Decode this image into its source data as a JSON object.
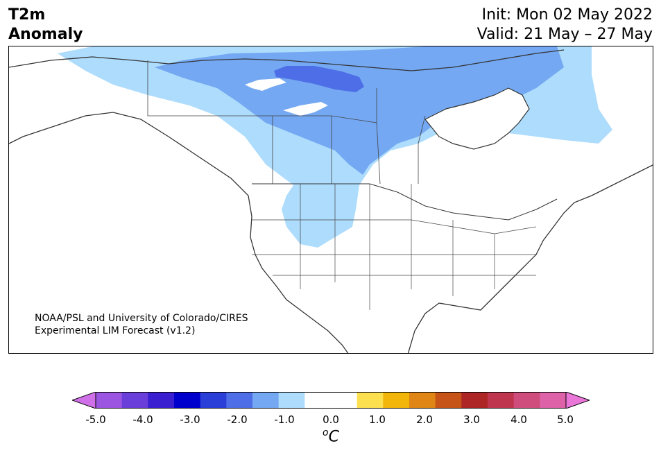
{
  "title": {
    "line1": "T2m",
    "line2": "Anomaly"
  },
  "dates": {
    "init": "Init: Mon 02 May 2022",
    "valid": "Valid: 21 May – 27 May"
  },
  "credit": {
    "line1": "NOAA/PSL and University of Colorado/CIRES",
    "line2": "Experimental LIM Forecast (v1.2)"
  },
  "colorbar": {
    "ticks": [
      "-5.0",
      "-4.0",
      "-3.0",
      "-2.0",
      "-1.0",
      "0.0",
      "1.0",
      "2.0",
      "3.0",
      "4.0",
      "5.0"
    ],
    "unit_sup": "o",
    "unit": "C",
    "colors": [
      "#d070e8",
      "#9b55e0",
      "#6a3ed9",
      "#3a1fd0",
      "#0000cc",
      "#2a3ed8",
      "#4d6ee6",
      "#74a8f2",
      "#aedcfc",
      "#ffffff",
      "#ffffff",
      "#fde050",
      "#f2b50a",
      "#df8616",
      "#c65318",
      "#ad2525",
      "#c0354e",
      "#cf4d7c",
      "#dd62a8",
      "#ea76d8"
    ]
  },
  "map": {
    "anomaly_colors": {
      "light_blue": "#aedcfc",
      "mid_blue": "#74a8f2",
      "dark_blue": "#4d6ee6"
    }
  }
}
